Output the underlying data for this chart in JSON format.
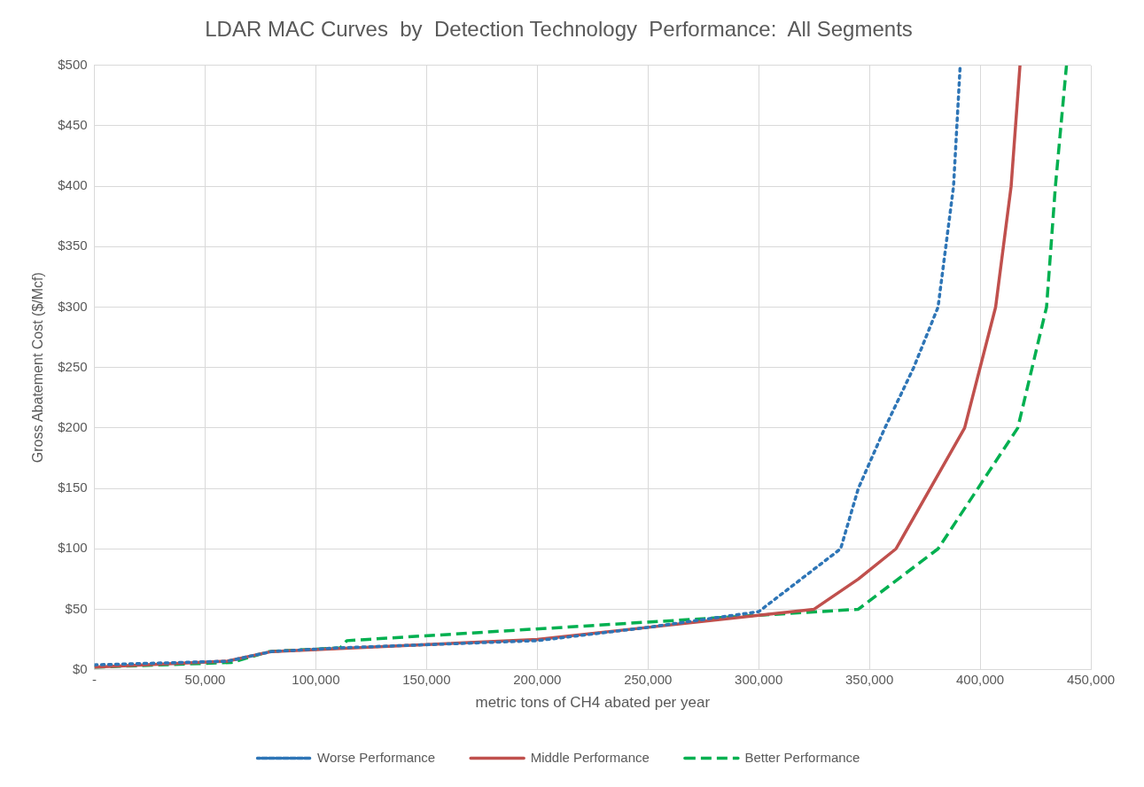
{
  "chart_data": {
    "type": "line",
    "title": "LDAR MAC Curves  by  Detection Technology  Performance:  All Segments",
    "xlabel": "metric tons of CH4 abated per year",
    "ylabel": "Gross Abatement Cost ($/Mcf)",
    "xlim": [
      0,
      450000
    ],
    "xticks": [
      {
        "value": 0,
        "label": "-"
      },
      {
        "value": 50000,
        "label": "50,000"
      },
      {
        "value": 100000,
        "label": "100,000"
      },
      {
        "value": 150000,
        "label": "150,000"
      },
      {
        "value": 200000,
        "label": "200,000"
      },
      {
        "value": 250000,
        "label": "250,000"
      },
      {
        "value": 300000,
        "label": "300,000"
      },
      {
        "value": 350000,
        "label": "350,000"
      },
      {
        "value": 400000,
        "label": "400,000"
      },
      {
        "value": 450000,
        "label": "450,000"
      }
    ],
    "ylim": [
      0,
      500
    ],
    "yticks": [
      {
        "value": 0,
        "label": "$0"
      },
      {
        "value": 50,
        "label": "$50"
      },
      {
        "value": 100,
        "label": "$100"
      },
      {
        "value": 150,
        "label": "$150"
      },
      {
        "value": 200,
        "label": "$200"
      },
      {
        "value": 250,
        "label": "$250"
      },
      {
        "value": 300,
        "label": "$300"
      },
      {
        "value": 350,
        "label": "$350"
      },
      {
        "value": 400,
        "label": "$400"
      },
      {
        "value": 450,
        "label": "$450"
      },
      {
        "value": 500,
        "label": "$500"
      }
    ],
    "grid": true,
    "legend": "bottom",
    "marker": "none",
    "series": [
      {
        "name": "Worse Performance",
        "color": "#2e75b6",
        "line_style": "dotted",
        "x": [
          0,
          60000,
          80000,
          110000,
          200000,
          250000,
          300000,
          337000,
          345000,
          357000,
          370000,
          381000,
          388000,
          391000
        ],
        "values": [
          4,
          7,
          15,
          18,
          24,
          35,
          48,
          100,
          150,
          200,
          250,
          300,
          400,
          500
        ]
      },
      {
        "name": "Middle Performance",
        "color": "#c0504d",
        "line_style": "solid",
        "x": [
          0,
          60000,
          80000,
          200000,
          250000,
          300000,
          325000,
          345000,
          362000,
          393000,
          407000,
          414000,
          418000
        ],
        "values": [
          2,
          7,
          15,
          25,
          35,
          45,
          50,
          75,
          100,
          200,
          300,
          400,
          500
        ]
      },
      {
        "name": "Better Performance",
        "color": "#00b050",
        "line_style": "dashed",
        "x": [
          0,
          62000,
          79000,
          111000,
          114000,
          300000,
          345000,
          381000,
          417000,
          430000,
          434000,
          439000
        ],
        "values": [
          2,
          6,
          15,
          18,
          24,
          45,
          50,
          100,
          200,
          300,
          400,
          500
        ]
      }
    ]
  }
}
